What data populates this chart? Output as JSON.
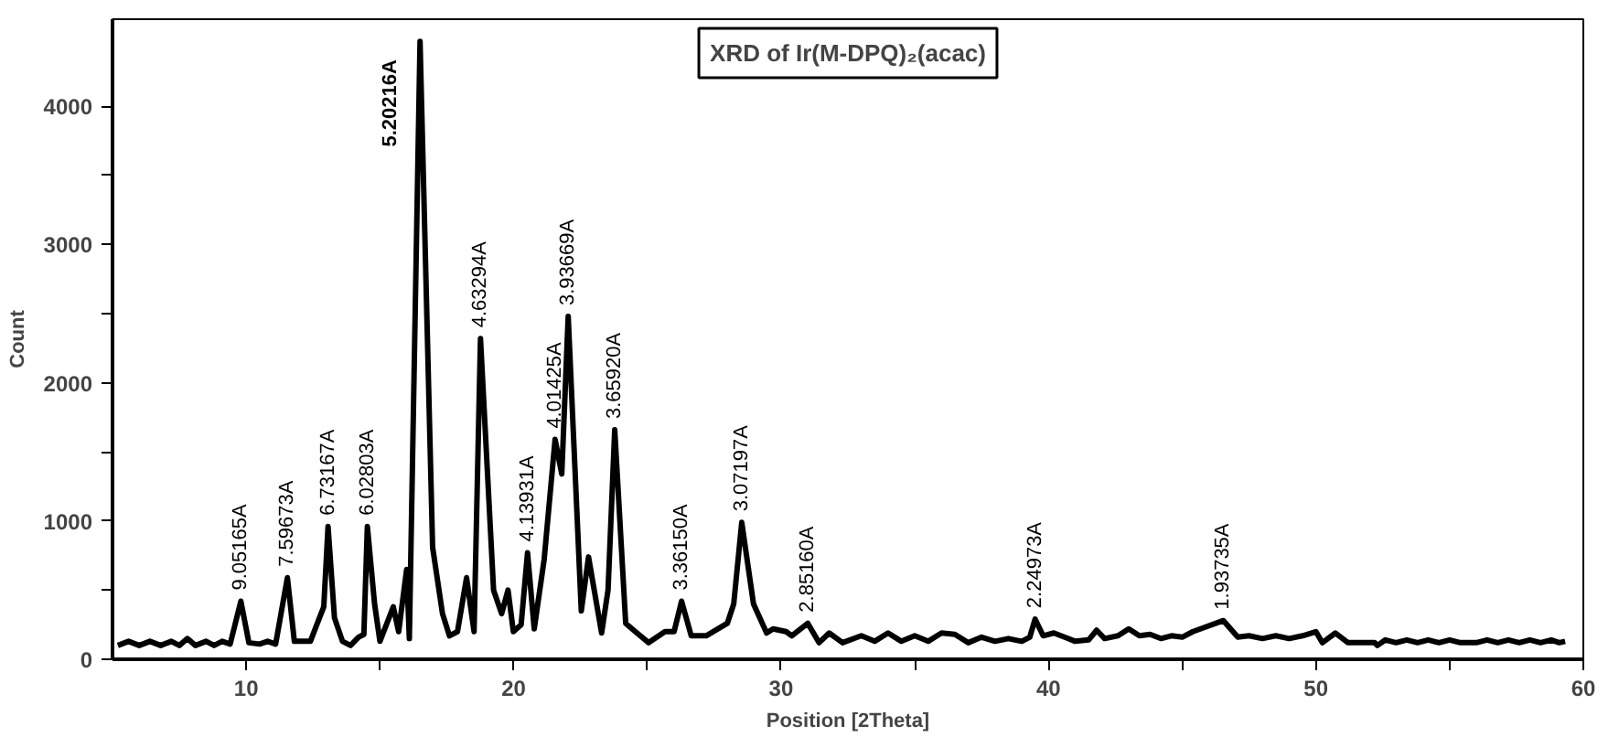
{
  "chart_data": {
    "type": "line",
    "title": "XRD of Ir(M-DPQ)₂(acac)",
    "xlabel": "Position [2Theta]",
    "ylabel": "Count",
    "xlim": [
      5,
      60
    ],
    "ylim": [
      0,
      4630
    ],
    "xticks": [
      10,
      {
        "value": 15,
        "label": null
      },
      20,
      {
        "value": 25,
        "label": null
      },
      30,
      {
        "value": 35,
        "label": null
      },
      40,
      {
        "value": 45,
        "label": null
      },
      50,
      {
        "value": 55,
        "label": null
      },
      60
    ],
    "yticks": [
      0,
      {
        "value": 500,
        "label": null
      },
      1000,
      {
        "value": 1500,
        "label": null
      },
      2000,
      {
        "value": 2500,
        "label": null
      },
      3000,
      {
        "value": 3500,
        "label": null
      },
      4000
    ],
    "grid": false,
    "marker": "none",
    "line_style": "solid",
    "series": [
      {
        "color": "#000000",
        "x": [
          5.2,
          5.6,
          6.0,
          6.4,
          6.8,
          7.2,
          7.5,
          7.8,
          8.1,
          8.5,
          8.8,
          9.1,
          9.4,
          9.8,
          10.1,
          10.5,
          10.8,
          11.1,
          11.54,
          11.8,
          12.4,
          12.7,
          12.9,
          13.06,
          13.3,
          13.6,
          13.9,
          14.2,
          14.4,
          14.53,
          14.8,
          15.0,
          15.5,
          15.7,
          16.0,
          16.1,
          16.5,
          16.97,
          17.34,
          17.6,
          17.9,
          18.24,
          18.52,
          18.76,
          19.25,
          19.55,
          19.79,
          19.99,
          20.28,
          20.52,
          20.77,
          21.14,
          21.55,
          21.8,
          22.04,
          22.53,
          22.8,
          23.29,
          23.53,
          23.78,
          24.19,
          24.55,
          25.05,
          25.66,
          26.0,
          26.28,
          26.64,
          27.2,
          27.99,
          28.23,
          28.53,
          28.97,
          29.46,
          29.7,
          30.19,
          30.4,
          31.0,
          31.42,
          31.8,
          32.3,
          33.0,
          33.5,
          34.0,
          34.5,
          35.0,
          35.5,
          36.0,
          36.5,
          37.0,
          37.5,
          38.0,
          38.5,
          39.0,
          39.3,
          39.5,
          39.8,
          40.2,
          40.6,
          41.0,
          41.5,
          41.8,
          42.1,
          42.6,
          43.0,
          43.4,
          43.8,
          44.2,
          44.6,
          45.0,
          45.4,
          46.54,
          47.08,
          47.5,
          48.0,
          48.5,
          49.0,
          49.5,
          50.0,
          50.24,
          50.73,
          51.2,
          52.2,
          52.3,
          52.6,
          53.0,
          53.4,
          53.8,
          54.2,
          54.6,
          55.0,
          55.4,
          56.0,
          56.4,
          56.8,
          57.2,
          57.6,
          58.0,
          58.4,
          58.8,
          59.1,
          59.32
        ],
        "values": [
          100,
          130,
          100,
          130,
          100,
          130,
          100,
          150,
          100,
          130,
          100,
          130,
          110,
          420,
          120,
          110,
          130,
          110,
          590,
          130,
          130,
          280,
          380,
          960,
          300,
          130,
          100,
          160,
          180,
          960,
          400,
          130,
          380,
          200,
          650,
          150,
          4470,
          810,
          330,
          170,
          200,
          590,
          200,
          2320,
          500,
          330,
          500,
          200,
          250,
          770,
          220,
          720,
          1590,
          1340,
          2480,
          350,
          740,
          190,
          500,
          1660,
          260,
          200,
          120,
          200,
          200,
          420,
          170,
          170,
          260,
          400,
          990,
          400,
          190,
          220,
          200,
          170,
          260,
          120,
          190,
          120,
          170,
          130,
          190,
          130,
          170,
          130,
          190,
          180,
          120,
          160,
          130,
          150,
          130,
          160,
          290,
          170,
          190,
          160,
          130,
          140,
          210,
          150,
          170,
          220,
          170,
          180,
          150,
          170,
          160,
          200,
          280,
          160,
          170,
          150,
          170,
          150,
          170,
          200,
          120,
          190,
          120,
          120,
          100,
          140,
          120,
          140,
          120,
          140,
          120,
          140,
          120,
          120,
          140,
          120,
          140,
          120,
          140,
          120,
          140,
          120,
          130
        ]
      }
    ],
    "annotations": [
      {
        "text": "9.05165A",
        "x": 9.8,
        "y": 420
      },
      {
        "text": "7.59673A",
        "x": 11.54,
        "y": 590
      },
      {
        "text": "6.73167A",
        "x": 13.06,
        "y": 960
      },
      {
        "text": "6.02803A",
        "x": 14.53,
        "y": 960
      },
      {
        "text": "5.20216A",
        "x": 16.5,
        "y": 4470
      },
      {
        "text": "4.63294A",
        "x": 18.76,
        "y": 2320
      },
      {
        "text": "4.13931A",
        "x": 20.52,
        "y": 770
      },
      {
        "text": "4.01425A",
        "x": 21.55,
        "y": 1590
      },
      {
        "text": "3.93669A",
        "x": 22.04,
        "y": 2480
      },
      {
        "text": "3.65920A",
        "x": 23.78,
        "y": 1660
      },
      {
        "text": "3.36150A",
        "x": 26.28,
        "y": 420
      },
      {
        "text": "3.07197A",
        "x": 28.53,
        "y": 990
      },
      {
        "text": "2.85160A",
        "x": 31.0,
        "y": 260
      },
      {
        "text": "2.24973A",
        "x": 39.5,
        "y": 290
      },
      {
        "text": "1.93735A",
        "x": 46.54,
        "y": 280
      }
    ]
  }
}
